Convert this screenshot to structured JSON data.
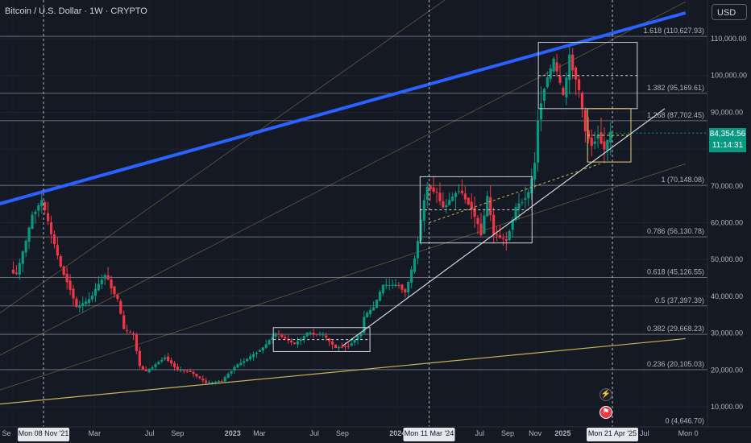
{
  "title": "Bitcoin / U.S. Dollar · 1W · CRYPTO",
  "currency_button": "USD",
  "current_price": "84,354.56",
  "countdown": "11:14:31",
  "icons": {
    "lightning": "lightning-icon",
    "flag": "us-flag-icon"
  },
  "colors": {
    "bg": "#151924",
    "up": "#089981",
    "down": "#f23645",
    "trend": "#2962ff",
    "accent": "#c9b458"
  },
  "chart_data": {
    "type": "candlestick",
    "title": "Bitcoin / U.S. Dollar · 1W · CRYPTO",
    "y_ticks": [
      "110,000.00",
      "100,000.00",
      "90,000.00",
      "80,000.00",
      "70,000.00",
      "60,000.00",
      "50,000.00",
      "40,000.00",
      "30,000.00",
      "20,000.00",
      "10,000.00"
    ],
    "y_tick_values": [
      110000,
      100000,
      90000,
      80000,
      70000,
      60000,
      50000,
      40000,
      30000,
      20000,
      10000
    ],
    "ylim": [
      0,
      120000
    ],
    "x_ticks": [
      "Se",
      "Mar",
      "Jul",
      "Sep",
      "2023",
      "Mar",
      "Jul",
      "Sep",
      "2024",
      "Jul",
      "Sep",
      "Nov",
      "2025",
      "Jul",
      "Mon 0"
    ],
    "x_tick_dates": [
      "2021-09-01",
      "2022-03-01",
      "2022-07-01",
      "2022-09-01",
      "2023-01-01",
      "2023-03-01",
      "2023-07-01",
      "2023-09-01",
      "2024-01-01",
      "2024-07-01",
      "2024-09-01",
      "2024-11-01",
      "2025-01-01",
      "2025-07-01",
      "2025-10-06"
    ],
    "crosshair_dates": [
      "Mon 08 Nov '21",
      "Mon 11 Mar '24",
      "Mon 21 Apr '25"
    ],
    "fib_levels": [
      {
        "label": "1.618 (110,627.93)",
        "value": 110627.93
      },
      {
        "label": "1.382 (95,169.61)",
        "value": 95169.61
      },
      {
        "label": "1.268 (87,702.45)",
        "value": 87702.45
      },
      {
        "label": "1 (70,148.08)",
        "value": 70148.08
      },
      {
        "label": "0.786 (56,130.78)",
        "value": 56130.78
      },
      {
        "label": "0.618 (45,126.55)",
        "value": 45126.55
      },
      {
        "label": "0.5 (37,397.39)",
        "value": 37397.39
      },
      {
        "label": "0.382 (29,668.23)",
        "value": 29668.23
      },
      {
        "label": "0.236 (20,105.03)",
        "value": 20105.03
      },
      {
        "label": "0 (4,646.70)",
        "value": 4646.7
      }
    ],
    "path": [
      [
        "2021-08-30",
        47000
      ],
      [
        "2021-09-13",
        46000
      ],
      [
        "2021-10-04",
        55000
      ],
      [
        "2021-10-18",
        62000
      ],
      [
        "2021-11-08",
        66000
      ],
      [
        "2021-11-29",
        57000
      ],
      [
        "2021-12-20",
        48000
      ],
      [
        "2022-01-10",
        42000
      ],
      [
        "2022-01-24",
        37000
      ],
      [
        "2022-02-21",
        39000
      ],
      [
        "2022-03-28",
        46000
      ],
      [
        "2022-04-25",
        39000
      ],
      [
        "2022-05-09",
        31000
      ],
      [
        "2022-05-30",
        29500
      ],
      [
        "2022-06-13",
        21000
      ],
      [
        "2022-06-27",
        19500
      ],
      [
        "2022-08-08",
        23500
      ],
      [
        "2022-09-05",
        20000
      ],
      [
        "2022-10-03",
        19500
      ],
      [
        "2022-11-07",
        16500
      ],
      [
        "2022-12-12",
        17000
      ],
      [
        "2023-01-09",
        20800
      ],
      [
        "2023-02-06",
        23000
      ],
      [
        "2023-03-13",
        26000
      ],
      [
        "2023-03-27",
        28000
      ],
      [
        "2023-04-10",
        30000
      ],
      [
        "2023-05-22",
        27000
      ],
      [
        "2023-06-19",
        30000
      ],
      [
        "2023-07-24",
        29500
      ],
      [
        "2023-08-21",
        26000
      ],
      [
        "2023-09-18",
        26500
      ],
      [
        "2023-10-16",
        30000
      ],
      [
        "2023-10-23",
        34500
      ],
      [
        "2023-11-13",
        37000
      ],
      [
        "2023-12-04",
        43000
      ],
      [
        "2024-01-08",
        43000
      ],
      [
        "2024-01-22",
        41000
      ],
      [
        "2024-02-12",
        50000
      ],
      [
        "2024-03-04",
        66000
      ],
      [
        "2024-03-11",
        70000
      ],
      [
        "2024-04-01",
        68000
      ],
      [
        "2024-04-15",
        64000
      ],
      [
        "2024-05-20",
        69000
      ],
      [
        "2024-06-17",
        64000
      ],
      [
        "2024-07-08",
        57000
      ],
      [
        "2024-07-22",
        67000
      ],
      [
        "2024-08-05",
        57000
      ],
      [
        "2024-09-02",
        55000
      ],
      [
        "2024-09-23",
        64000
      ],
      [
        "2024-10-21",
        68000
      ],
      [
        "2024-11-04",
        76000
      ],
      [
        "2024-11-11",
        88000
      ],
      [
        "2024-11-25",
        97000
      ],
      [
        "2024-12-16",
        104000
      ],
      [
        "2025-01-06",
        94000
      ],
      [
        "2025-01-20",
        105000
      ],
      [
        "2025-02-10",
        96000
      ],
      [
        "2025-02-24",
        85000
      ],
      [
        "2025-03-10",
        81000
      ],
      [
        "2025-03-24",
        84000
      ],
      [
        "2025-04-07",
        80000
      ],
      [
        "2025-04-21",
        84354.56
      ]
    ],
    "trendlines": [
      {
        "name": "blue",
        "color": "#2962ff",
        "from": [
          "2021-06-01",
          63000
        ],
        "to": [
          "2025-09-30",
          117000
        ]
      },
      {
        "name": "support",
        "color": "#d1d4dc",
        "from": [
          "2023-09-01",
          26500
        ],
        "to": [
          "2025-08-15",
          91000
        ]
      },
      {
        "name": "long_gold",
        "color": "#c9b458",
        "from": [
          "2021-06-01",
          10000
        ],
        "to": [
          "2025-09-30",
          28500
        ]
      }
    ],
    "boxes": [
      {
        "from": [
          "2023-04-01",
          25000
        ],
        "to": [
          "2023-11-01",
          31500
        ]
      },
      {
        "from": [
          "2024-02-20",
          54500
        ],
        "to": [
          "2024-10-25",
          72500
        ]
      },
      {
        "from": [
          "2024-11-08",
          91000
        ],
        "to": [
          "2025-06-15",
          109000
        ]
      },
      {
        "from": [
          "2025-02-25",
          76500
        ],
        "to": [
          "2025-06-01",
          91000
        ]
      }
    ],
    "grid": true,
    "log_scale": false
  }
}
